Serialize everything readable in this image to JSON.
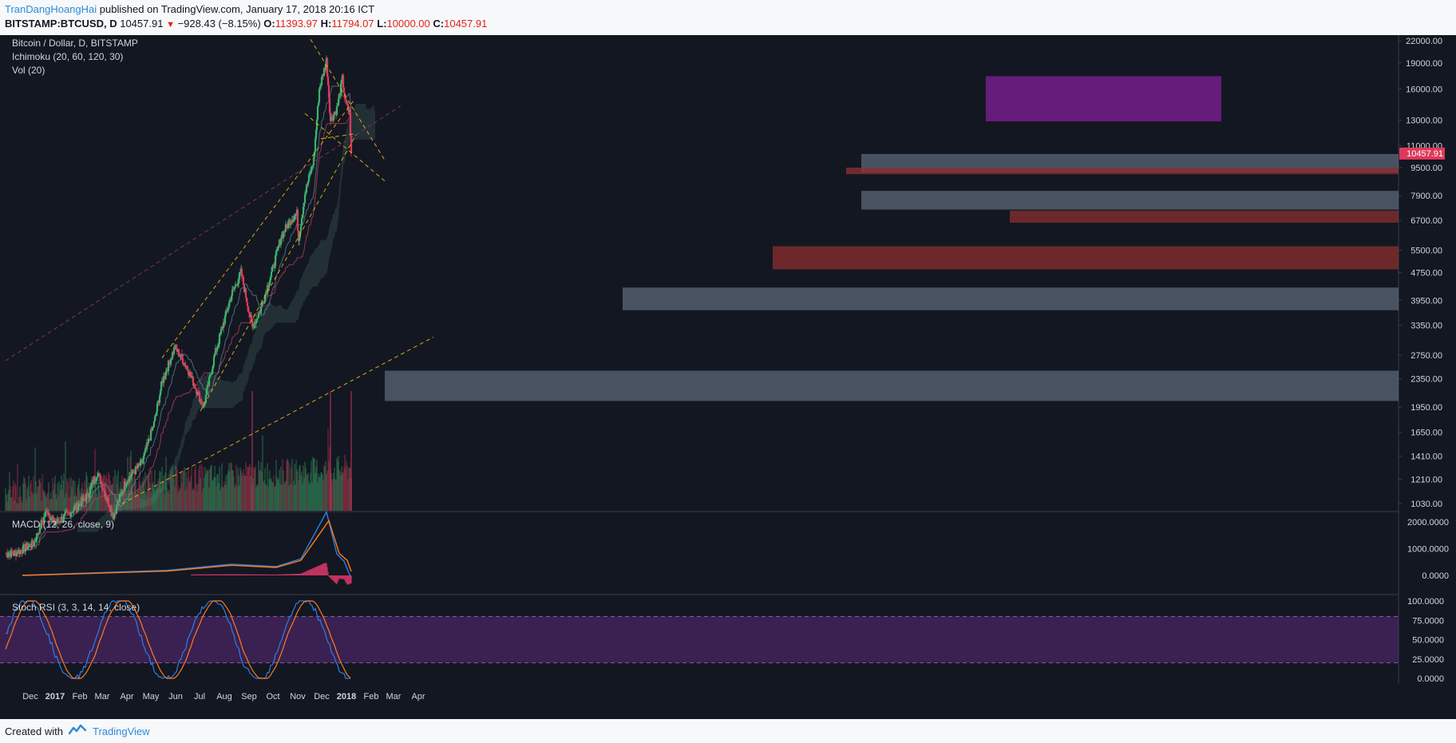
{
  "header": {
    "author": "TranDangHoangHai",
    "published": "published on TradingView.com, January 17, 2018 20:16 ICT",
    "symbol": "BITSTAMP:BTCUSD, D",
    "last": "10457.91",
    "change": "−928.43 (−8.15%)",
    "o_label": "O:",
    "o_value": "11393.97",
    "h_label": "H:",
    "h_value": "11794.07",
    "l_label": "L:",
    "l_value": "10000.00",
    "c_label": "C:",
    "c_value": "10457.91"
  },
  "legend": {
    "title": "Bitcoin / Dollar, D, BITSTAMP",
    "ichimoku": "Ichimoku (20, 60, 120, 30)",
    "vol": "Vol (20)",
    "macd": "MACD (12, 26, close, 9)",
    "stoch": "Stoch RSI (3, 3, 14, 14, close)"
  },
  "footer": {
    "created": "Created with",
    "brand": "TradingView"
  },
  "colors": {
    "up": "#3bb36e",
    "down": "#e0385b",
    "macd": "#2f7de0",
    "signal": "#ff7a1c",
    "zone": "#8a9cb0",
    "redzone": "#8b2f2f",
    "purple": "#8a1fa0",
    "trend": "#f0b90b"
  },
  "chart_data": [
    {
      "type": "candlestick",
      "title": "Bitcoin / Dollar, D, BITSTAMP",
      "price_scale": "log",
      "y_ticks": [
        "22000.00",
        "19000.00",
        "16000.00",
        "13000.00",
        "11000.00",
        "9500.00",
        "7900.00",
        "6700.00",
        "5500.00",
        "4750.00",
        "3950.00",
        "3350.00",
        "2750.00",
        "2350.00",
        "1950.00",
        "1650.00",
        "1410.00",
        "1210.00",
        "1030.00"
      ],
      "x_ticks": [
        "Dec",
        "2017",
        "Feb",
        "Mar",
        "Apr",
        "May",
        "Jun",
        "Jul",
        "Aug",
        "Sep",
        "Oct",
        "Nov",
        "Dec",
        "2018",
        "Feb",
        "Mar",
        "Apr"
      ],
      "last_price_label": "10457.91",
      "close_path": [
        [
          "2016-11-20",
          740
        ],
        [
          "2016-12-15",
          790
        ],
        [
          "2017-01-01",
          990
        ],
        [
          "2017-01-10",
          900
        ],
        [
          "2017-02-01",
          980
        ],
        [
          "2017-02-20",
          1080
        ],
        [
          "2017-03-05",
          1270
        ],
        [
          "2017-03-25",
          950
        ],
        [
          "2017-04-10",
          1200
        ],
        [
          "2017-04-30",
          1350
        ],
        [
          "2017-05-15",
          1750
        ],
        [
          "2017-05-25",
          2300
        ],
        [
          "2017-06-10",
          2900
        ],
        [
          "2017-06-25",
          2550
        ],
        [
          "2017-07-16",
          1950
        ],
        [
          "2017-07-30",
          2750
        ],
        [
          "2017-08-10",
          3400
        ],
        [
          "2017-08-20",
          4100
        ],
        [
          "2017-09-01",
          4750
        ],
        [
          "2017-09-15",
          3300
        ],
        [
          "2017-09-25",
          3700
        ],
        [
          "2017-10-10",
          4800
        ],
        [
          "2017-10-21",
          6000
        ],
        [
          "2017-11-01",
          6700
        ],
        [
          "2017-11-10",
          7000
        ],
        [
          "2017-11-12",
          5900
        ],
        [
          "2017-11-20",
          8000
        ],
        [
          "2017-12-01",
          10000
        ],
        [
          "2017-12-08",
          16000
        ],
        [
          "2017-12-17",
          19300
        ],
        [
          "2017-12-22",
          13000
        ],
        [
          "2017-12-30",
          14000
        ],
        [
          "2018-01-06",
          17100
        ],
        [
          "2018-01-10",
          14500
        ],
        [
          "2018-01-15",
          13700
        ],
        [
          "2018-01-17",
          10457.91
        ]
      ],
      "volume_spikes": [
        [
          "2017-09-15",
          "high"
        ],
        [
          "2017-12-22",
          "high"
        ],
        [
          "2018-01-17",
          "high"
        ]
      ]
    },
    {
      "type": "line",
      "title": "MACD (12, 26, close, 9)",
      "y_ticks": [
        "2000.0000",
        "1000.0000",
        "0.0000"
      ],
      "series": [
        {
          "values": [
            [
              "2016-12-01",
              5
            ],
            [
              "2017-06-01",
              190
            ],
            [
              "2017-08-20",
              420
            ],
            [
              "2017-10-15",
              330
            ],
            [
              "2017-11-15",
              620
            ],
            [
              "2017-12-17",
              2370
            ],
            [
              "2017-12-30",
              800
            ],
            [
              "2018-01-08",
              530
            ],
            [
              "2018-01-17",
              -120
            ]
          ]
        },
        {
          "values": [
            [
              "2016-12-01",
              0
            ],
            [
              "2017-06-01",
              160
            ],
            [
              "2017-08-20",
              380
            ],
            [
              "2017-10-15",
              300
            ],
            [
              "2017-11-15",
              560
            ],
            [
              "2017-12-20",
              2050
            ],
            [
              "2018-01-02",
              820
            ],
            [
              "2018-01-12",
              560
            ],
            [
              "2018-01-17",
              150
            ]
          ]
        }
      ]
    },
    {
      "type": "line",
      "title": "Stoch RSI (3, 3, 14, 14, close)",
      "y_ticks": [
        "100.0000",
        "75.0000",
        "50.0000",
        "25.0000",
        "0.0000"
      ],
      "bands": [
        80,
        20
      ]
    }
  ]
}
